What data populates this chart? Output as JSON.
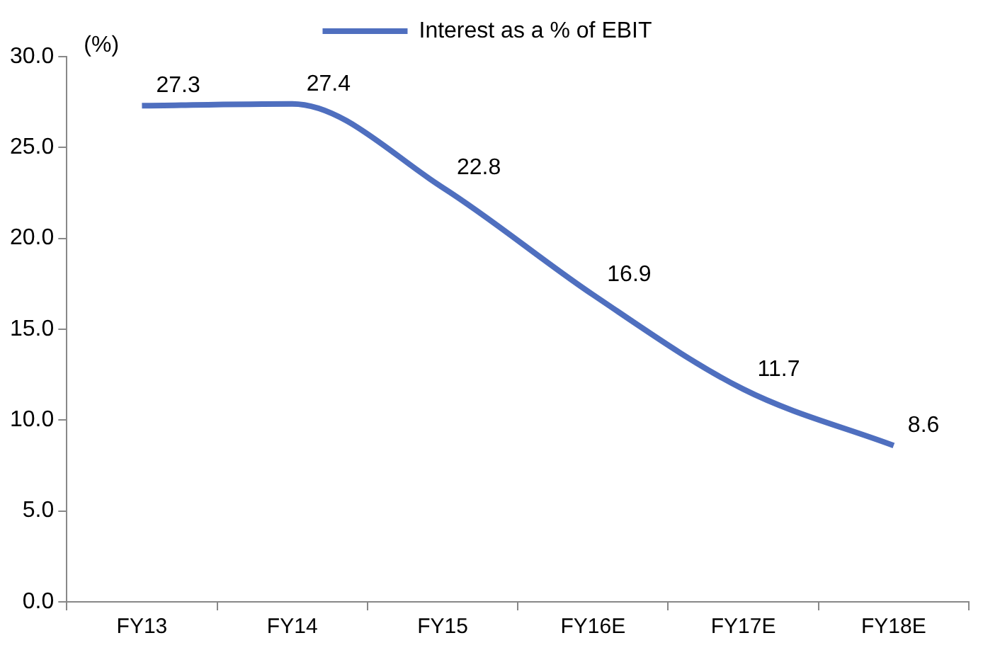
{
  "chart_data": {
    "type": "line",
    "ylabel": "(%)",
    "categories": [
      "FY13",
      "FY14",
      "FY15",
      "FY16E",
      "FY17E",
      "FY18E"
    ],
    "series": [
      {
        "name": "Interest as a % of EBIT",
        "color": "#4f6fbf",
        "values": [
          27.3,
          27.4,
          22.8,
          16.9,
          11.7,
          8.6
        ]
      }
    ],
    "ylim": [
      0,
      30
    ],
    "yticks": [
      {
        "value": 0,
        "label": "0.0"
      },
      {
        "value": 5,
        "label": "5.0"
      },
      {
        "value": 10,
        "label": "10.0"
      },
      {
        "value": 15,
        "label": "15.0"
      },
      {
        "value": 20,
        "label": "20.0"
      },
      {
        "value": 25,
        "label": "25.0"
      },
      {
        "value": 30,
        "label": "30.0"
      }
    ],
    "grid": false,
    "legend": "top",
    "marker": "none",
    "line_style": "solid",
    "data_labels": true
  }
}
